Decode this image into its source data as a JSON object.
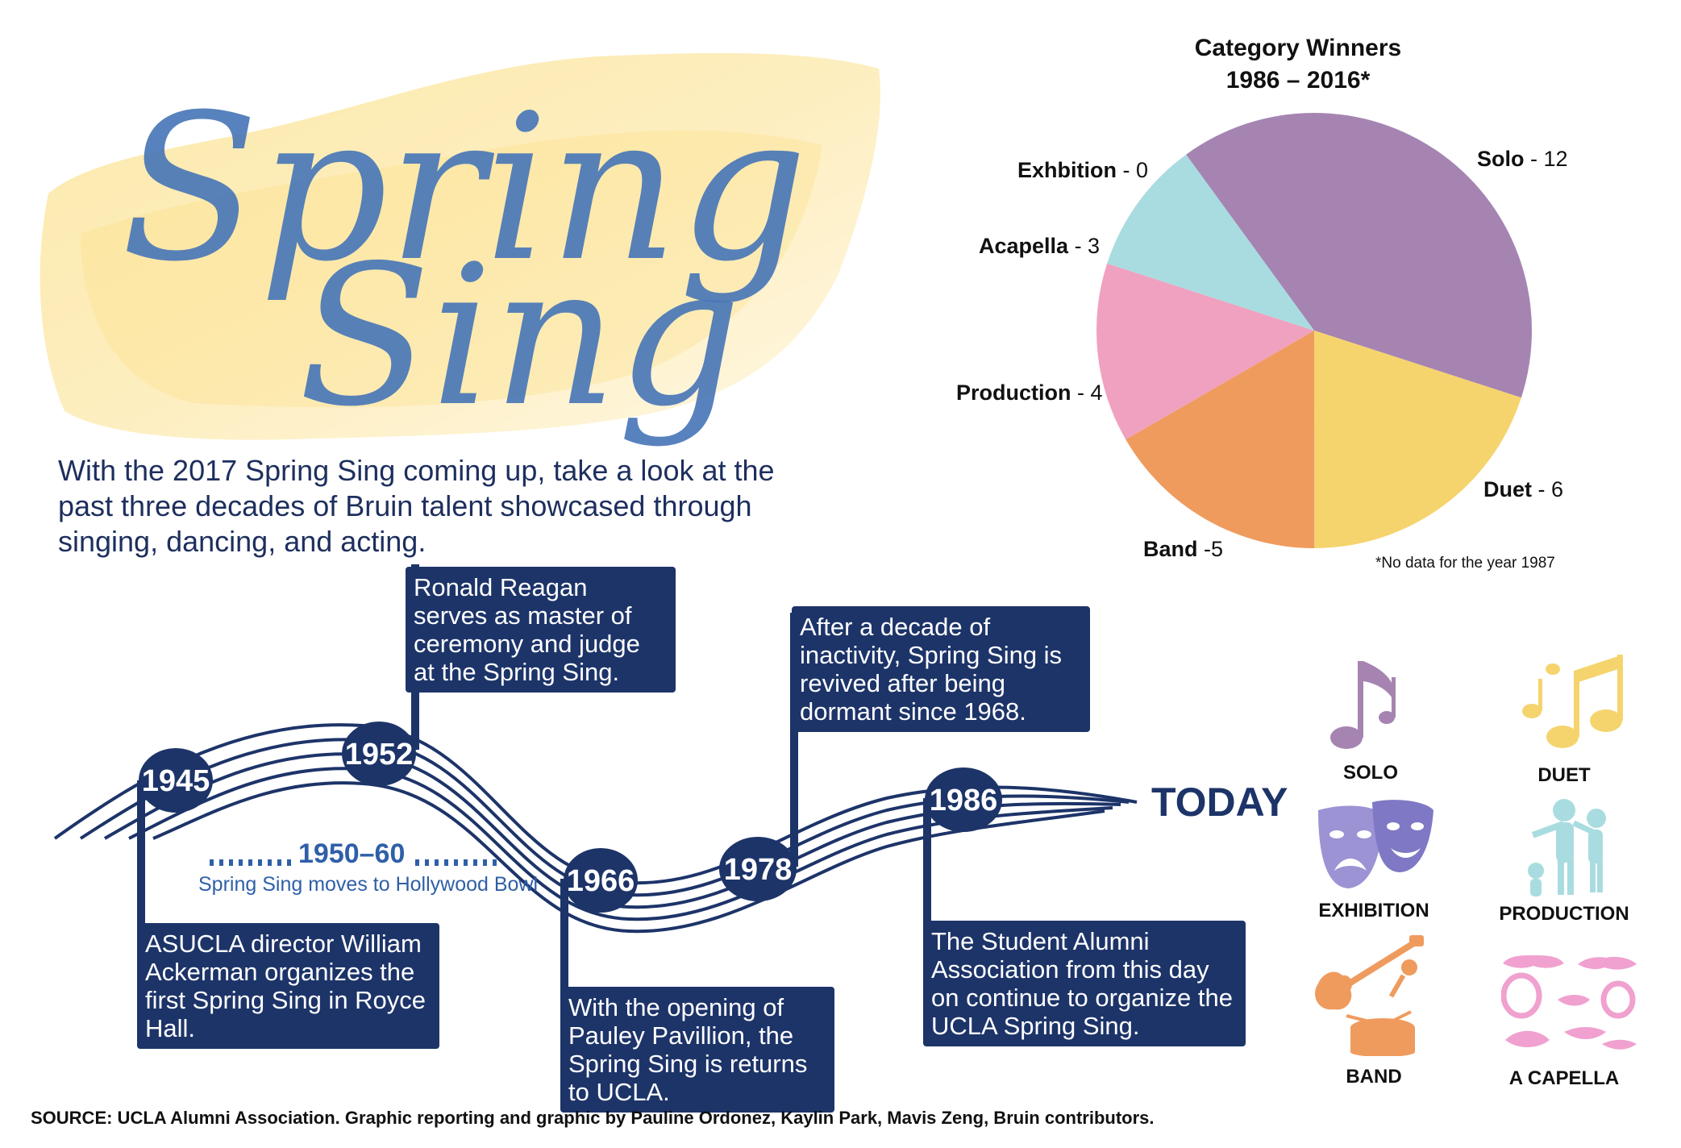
{
  "title": {
    "line1": "Spring",
    "line2": "Sing"
  },
  "intro": "With the 2017 Spring Sing coming up, take a look at the past three decades of Bruin talent showcased through singing, dancing, and acting.",
  "timeline": {
    "events": [
      {
        "year": "1945",
        "text": "ASUCLA director William Ackerman organizes the first Spring Sing in Royce Hall."
      },
      {
        "year": "1952",
        "text": "Ronald Reagan serves as master of ceremony and judge at the Spring Sing."
      },
      {
        "year": "1966",
        "text": "With the opening of Pauley Pavillion, the Spring Sing is returns to UCLA."
      },
      {
        "year": "1978",
        "text": "After a decade of inactivity, Spring Sing is revived after being dormant since 1968."
      },
      {
        "year": "1986",
        "text": "The Student Alumni Association from this day on continue to organize the UCLA Spring Sing."
      }
    ],
    "period": "1950–60",
    "period_text": "Spring Sing moves to Hollywood Bowl",
    "end_label": "TODAY"
  },
  "chart_data": {
    "type": "pie",
    "title_line1": "Category Winners",
    "title_line2": "1986 – 2016*",
    "slices": [
      {
        "label": "Solo",
        "value": 12,
        "display": " - 12",
        "color": "#a584b2"
      },
      {
        "label": "Duet",
        "value": 6,
        "display": " - 6",
        "color": "#f5d46e"
      },
      {
        "label": "Band",
        "value": 5,
        "display": " -5",
        "color": "#ef9b5e"
      },
      {
        "label": "Production",
        "value": 4,
        "display": " - 4",
        "color": "#f0a1bf"
      },
      {
        "label": "Acapella",
        "value": 3,
        "display": " - 3",
        "color": "#a9dce0"
      },
      {
        "label": "Exhbition",
        "value": 0,
        "display": " - 0",
        "color": "#a9dce0"
      }
    ],
    "note": "*No data for the year 1987"
  },
  "icons": [
    {
      "caption": "SOLO",
      "icon": "music-note-icon",
      "color": "#a584b2"
    },
    {
      "caption": "DUET",
      "icon": "music-notes-icon",
      "color": "#f5d46e"
    },
    {
      "caption": "EXHIBITION",
      "icon": "theater-masks-icon",
      "color": "#9b93d4"
    },
    {
      "caption": "PRODUCTION",
      "icon": "dancers-icon",
      "color": "#a9dce0"
    },
    {
      "caption": "BAND",
      "icon": "guitar-drum-icon",
      "color": "#ef9b5e"
    },
    {
      "caption": "A CAPELLA",
      "icon": "lips-icon",
      "color": "#f0a1cf"
    }
  ],
  "source": "SOURCE: UCLA Alumni Association. Graphic reporting and graphic by Pauline Ordonez, Kaylin Park, Mavis Zeng, Bruin contributors."
}
